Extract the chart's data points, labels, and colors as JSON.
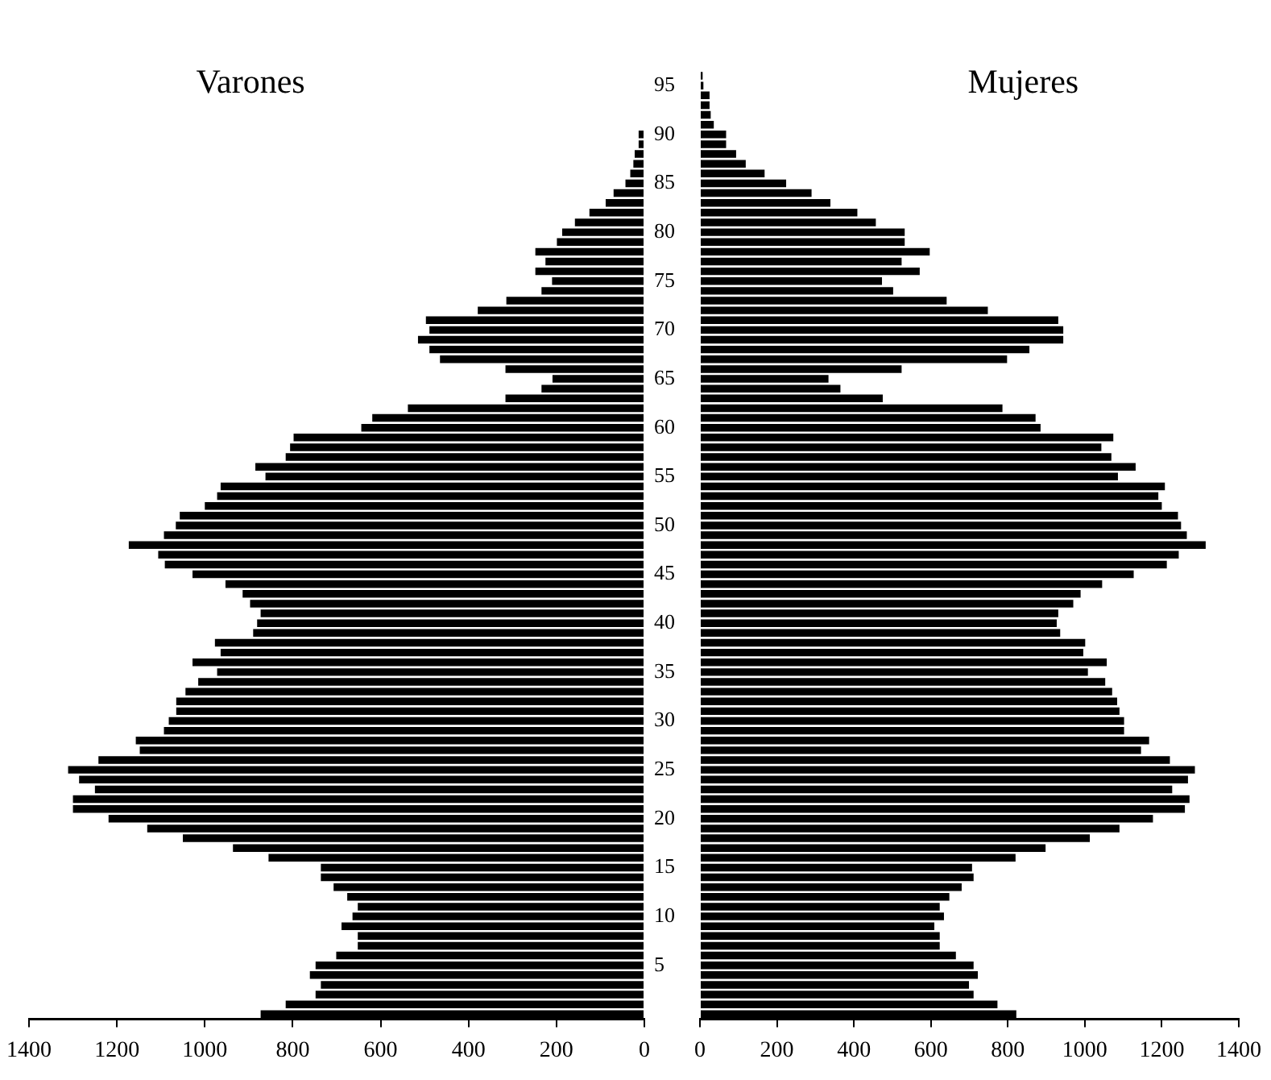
{
  "chart_data": [
    {
      "type": "bar",
      "orientation": "horizontal",
      "title": "Varones",
      "color": "#000000",
      "categories": [
        null,
        "95",
        null,
        null,
        null,
        null,
        "90",
        null,
        null,
        null,
        null,
        "85",
        null,
        null,
        null,
        null,
        "80",
        null,
        null,
        null,
        null,
        "75",
        null,
        null,
        null,
        null,
        "70",
        null,
        null,
        null,
        null,
        "65",
        null,
        null,
        null,
        null,
        "60",
        null,
        null,
        null,
        null,
        "55",
        null,
        null,
        null,
        null,
        "50",
        null,
        null,
        null,
        null,
        "45",
        null,
        null,
        null,
        null,
        "40",
        null,
        null,
        null,
        null,
        "35",
        null,
        null,
        null,
        null,
        "30",
        null,
        null,
        null,
        null,
        "25",
        null,
        null,
        null,
        null,
        "20",
        null,
        null,
        null,
        null,
        "15",
        null,
        null,
        null,
        null,
        "10",
        null,
        null,
        null,
        null,
        "5",
        null,
        null,
        null,
        null,
        null
      ],
      "values": [
        null,
        null,
        null,
        null,
        null,
        null,
        13,
        13,
        22,
        25,
        32,
        43,
        70,
        88,
        125,
        158,
        187,
        199,
        248,
        225,
        248,
        210,
        234,
        314,
        379,
        497,
        489,
        515,
        489,
        465,
        316,
        209,
        234,
        316,
        538,
        619,
        644,
        798,
        806,
        816,
        885,
        862,
        964,
        972,
        1000,
        1057,
        1066,
        1093,
        1173,
        1106,
        1091,
        1028,
        953,
        914,
        897,
        873,
        881,
        890,
        977,
        964,
        1028,
        972,
        1015,
        1044,
        1065,
        1065,
        1082,
        1093,
        1157,
        1148,
        1242,
        1311,
        1286,
        1250,
        1300,
        1300,
        1219,
        1131,
        1050,
        936,
        855,
        736,
        736,
        707,
        676,
        652,
        664,
        689,
        652,
        652,
        701,
        748,
        761,
        736,
        748,
        816,
        873
      ],
      "xlim": [
        1400,
        0
      ],
      "xticks": [
        0,
        200,
        400,
        600,
        800,
        1000,
        1200,
        1400
      ]
    },
    {
      "type": "bar",
      "orientation": "horizontal",
      "title": "Mujeres",
      "color": "#000000",
      "tick_labels": "x",
      "categories": [
        null,
        "95",
        null,
        null,
        null,
        null,
        "90",
        null,
        null,
        null,
        null,
        "85",
        null,
        null,
        null,
        null,
        "80",
        null,
        null,
        null,
        null,
        "75",
        null,
        null,
        null,
        null,
        "70",
        null,
        null,
        null,
        null,
        "65",
        null,
        null,
        null,
        null,
        "60",
        null,
        null,
        null,
        null,
        "55",
        null,
        null,
        null,
        null,
        "50",
        null,
        null,
        null,
        null,
        "45",
        null,
        null,
        null,
        null,
        "40",
        null,
        null,
        null,
        null,
        "35",
        null,
        null,
        null,
        null,
        "30",
        null,
        null,
        null,
        null,
        "25",
        null,
        null,
        null,
        null,
        "20",
        null,
        null,
        null,
        null,
        "15",
        null,
        null,
        null,
        null,
        "10",
        null,
        null,
        null,
        null,
        "5",
        null,
        null,
        null,
        null,
        null
      ],
      "values": [
        7,
        9,
        25,
        25,
        28,
        36,
        68,
        68,
        94,
        119,
        168,
        224,
        290,
        339,
        409,
        457,
        532,
        532,
        597,
        524,
        571,
        473,
        502,
        641,
        748,
        931,
        944,
        944,
        856,
        798,
        524,
        334,
        365,
        475,
        786,
        872,
        885,
        1074,
        1043,
        1069,
        1132,
        1086,
        1208,
        1191,
        1200,
        1242,
        1250,
        1265,
        1314,
        1244,
        1213,
        1127,
        1045,
        989,
        970,
        931,
        927,
        936,
        1001,
        996,
        1057,
        1008,
        1053,
        1071,
        1084,
        1090,
        1102,
        1102,
        1167,
        1146,
        1221,
        1286,
        1268,
        1227,
        1272,
        1260,
        1177,
        1090,
        1013,
        898,
        820,
        707,
        711,
        680,
        648,
        623,
        634,
        609,
        623,
        623,
        665,
        711,
        722,
        699,
        711,
        773,
        822
      ],
      "xlim": [
        0,
        1400
      ],
      "xticks": [
        0,
        200,
        400,
        600,
        800,
        1000,
        1200,
        1400
      ]
    }
  ]
}
